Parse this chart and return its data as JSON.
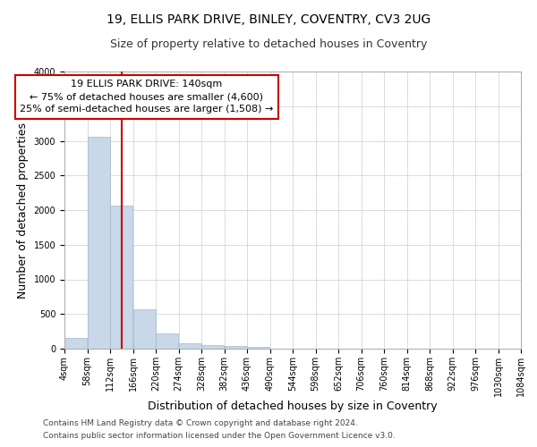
{
  "title_line1": "19, ELLIS PARK DRIVE, BINLEY, COVENTRY, CV3 2UG",
  "title_line2": "Size of property relative to detached houses in Coventry",
  "xlabel": "Distribution of detached houses by size in Coventry",
  "ylabel": "Number of detached properties",
  "bar_color": "#c8d8e8",
  "bar_edge_color": "#a0b8cc",
  "bin_labels": [
    "4sqm",
    "58sqm",
    "112sqm",
    "166sqm",
    "220sqm",
    "274sqm",
    "328sqm",
    "382sqm",
    "436sqm",
    "490sqm",
    "544sqm",
    "598sqm",
    "652sqm",
    "706sqm",
    "760sqm",
    "814sqm",
    "868sqm",
    "922sqm",
    "976sqm",
    "1030sqm",
    "1084sqm"
  ],
  "bin_edges": [
    4,
    58,
    112,
    166,
    220,
    274,
    328,
    382,
    436,
    490,
    544,
    598,
    652,
    706,
    760,
    814,
    868,
    922,
    976,
    1030,
    1084
  ],
  "bar_heights": [
    150,
    3060,
    2060,
    570,
    215,
    80,
    55,
    45,
    30,
    0,
    0,
    0,
    0,
    0,
    0,
    0,
    0,
    0,
    0,
    0
  ],
  "property_size": 140,
  "red_line_color": "#cc0000",
  "annotation_line1": "19 ELLIS PARK DRIVE: 140sqm",
  "annotation_line2": "← 75% of detached houses are smaller (4,600)",
  "annotation_line3": "25% of semi-detached houses are larger (1,508) →",
  "annotation_box_color": "#ffffff",
  "annotation_border_color": "#cc0000",
  "ylim": [
    0,
    4000
  ],
  "yticks": [
    0,
    500,
    1000,
    1500,
    2000,
    2500,
    3000,
    3500,
    4000
  ],
  "footer_line1": "Contains HM Land Registry data © Crown copyright and database right 2024.",
  "footer_line2": "Contains public sector information licensed under the Open Government Licence v3.0.",
  "background_color": "#ffffff",
  "grid_color": "#c8d0dc",
  "title_fontsize": 10,
  "subtitle_fontsize": 9,
  "axis_label_fontsize": 9,
  "tick_fontsize": 7,
  "annotation_fontsize": 8,
  "footer_fontsize": 6.5
}
